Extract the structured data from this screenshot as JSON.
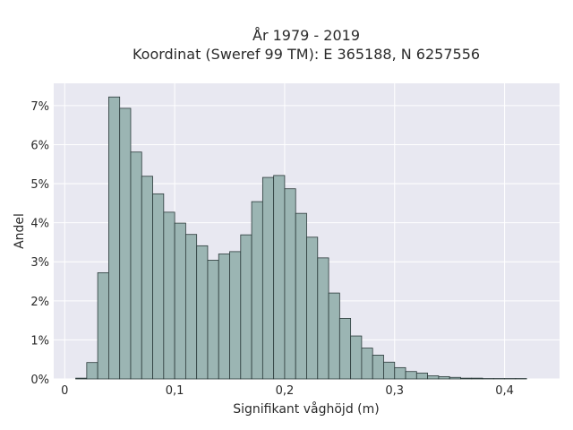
{
  "chart_data": {
    "type": "bar",
    "title_line1": "År 1979 - 2019",
    "title_line2": "Koordinat (Sweref 99 TM): E 365188, N 6257556",
    "xlabel": "Signifikant våghöjd (m)",
    "ylabel": "Andel",
    "xlim": [
      -0.01,
      0.45
    ],
    "ylim": [
      0,
      0.0757
    ],
    "bin_width": 0.01,
    "x_ticks": [
      0,
      0.1,
      0.2,
      0.3,
      0.4
    ],
    "x_tick_labels": [
      "0",
      "0,1",
      "0,2",
      "0,3",
      "0,4"
    ],
    "y_ticks": [
      0,
      0.01,
      0.02,
      0.03,
      0.04,
      0.05,
      0.06,
      0.07
    ],
    "y_tick_labels": [
      "0%",
      "1%",
      "2%",
      "3%",
      "4%",
      "5%",
      "6%",
      "7%"
    ],
    "bar_left_edges": [
      0.01,
      0.02,
      0.03,
      0.04,
      0.05,
      0.06,
      0.07,
      0.08,
      0.09,
      0.1,
      0.11,
      0.12,
      0.13,
      0.14,
      0.15,
      0.16,
      0.17,
      0.18,
      0.19,
      0.2,
      0.21,
      0.22,
      0.23,
      0.24,
      0.25,
      0.26,
      0.27,
      0.28,
      0.29,
      0.3,
      0.31,
      0.32,
      0.33,
      0.34,
      0.35,
      0.36,
      0.37,
      0.38,
      0.39,
      0.4,
      0.41
    ],
    "values": [
      0.0002,
      0.0042,
      0.0272,
      0.0722,
      0.0693,
      0.0581,
      0.0519,
      0.0474,
      0.0427,
      0.0399,
      0.037,
      0.0341,
      0.0304,
      0.032,
      0.0326,
      0.0369,
      0.0454,
      0.0516,
      0.0521,
      0.0487,
      0.0424,
      0.0363,
      0.031,
      0.022,
      0.0155,
      0.011,
      0.0079,
      0.0061,
      0.0043,
      0.0029,
      0.0019,
      0.0015,
      0.0008,
      0.0006,
      0.0004,
      0.0002,
      0.0002,
      0.0001,
      0.0001,
      0.0001,
      0.0001
    ],
    "grid": true,
    "colors": {
      "bar_fill": "#9bb5b3",
      "bar_stroke": "#2b3a3a",
      "plot_background": "#e8e8f1",
      "grid": "#ffffff"
    }
  }
}
